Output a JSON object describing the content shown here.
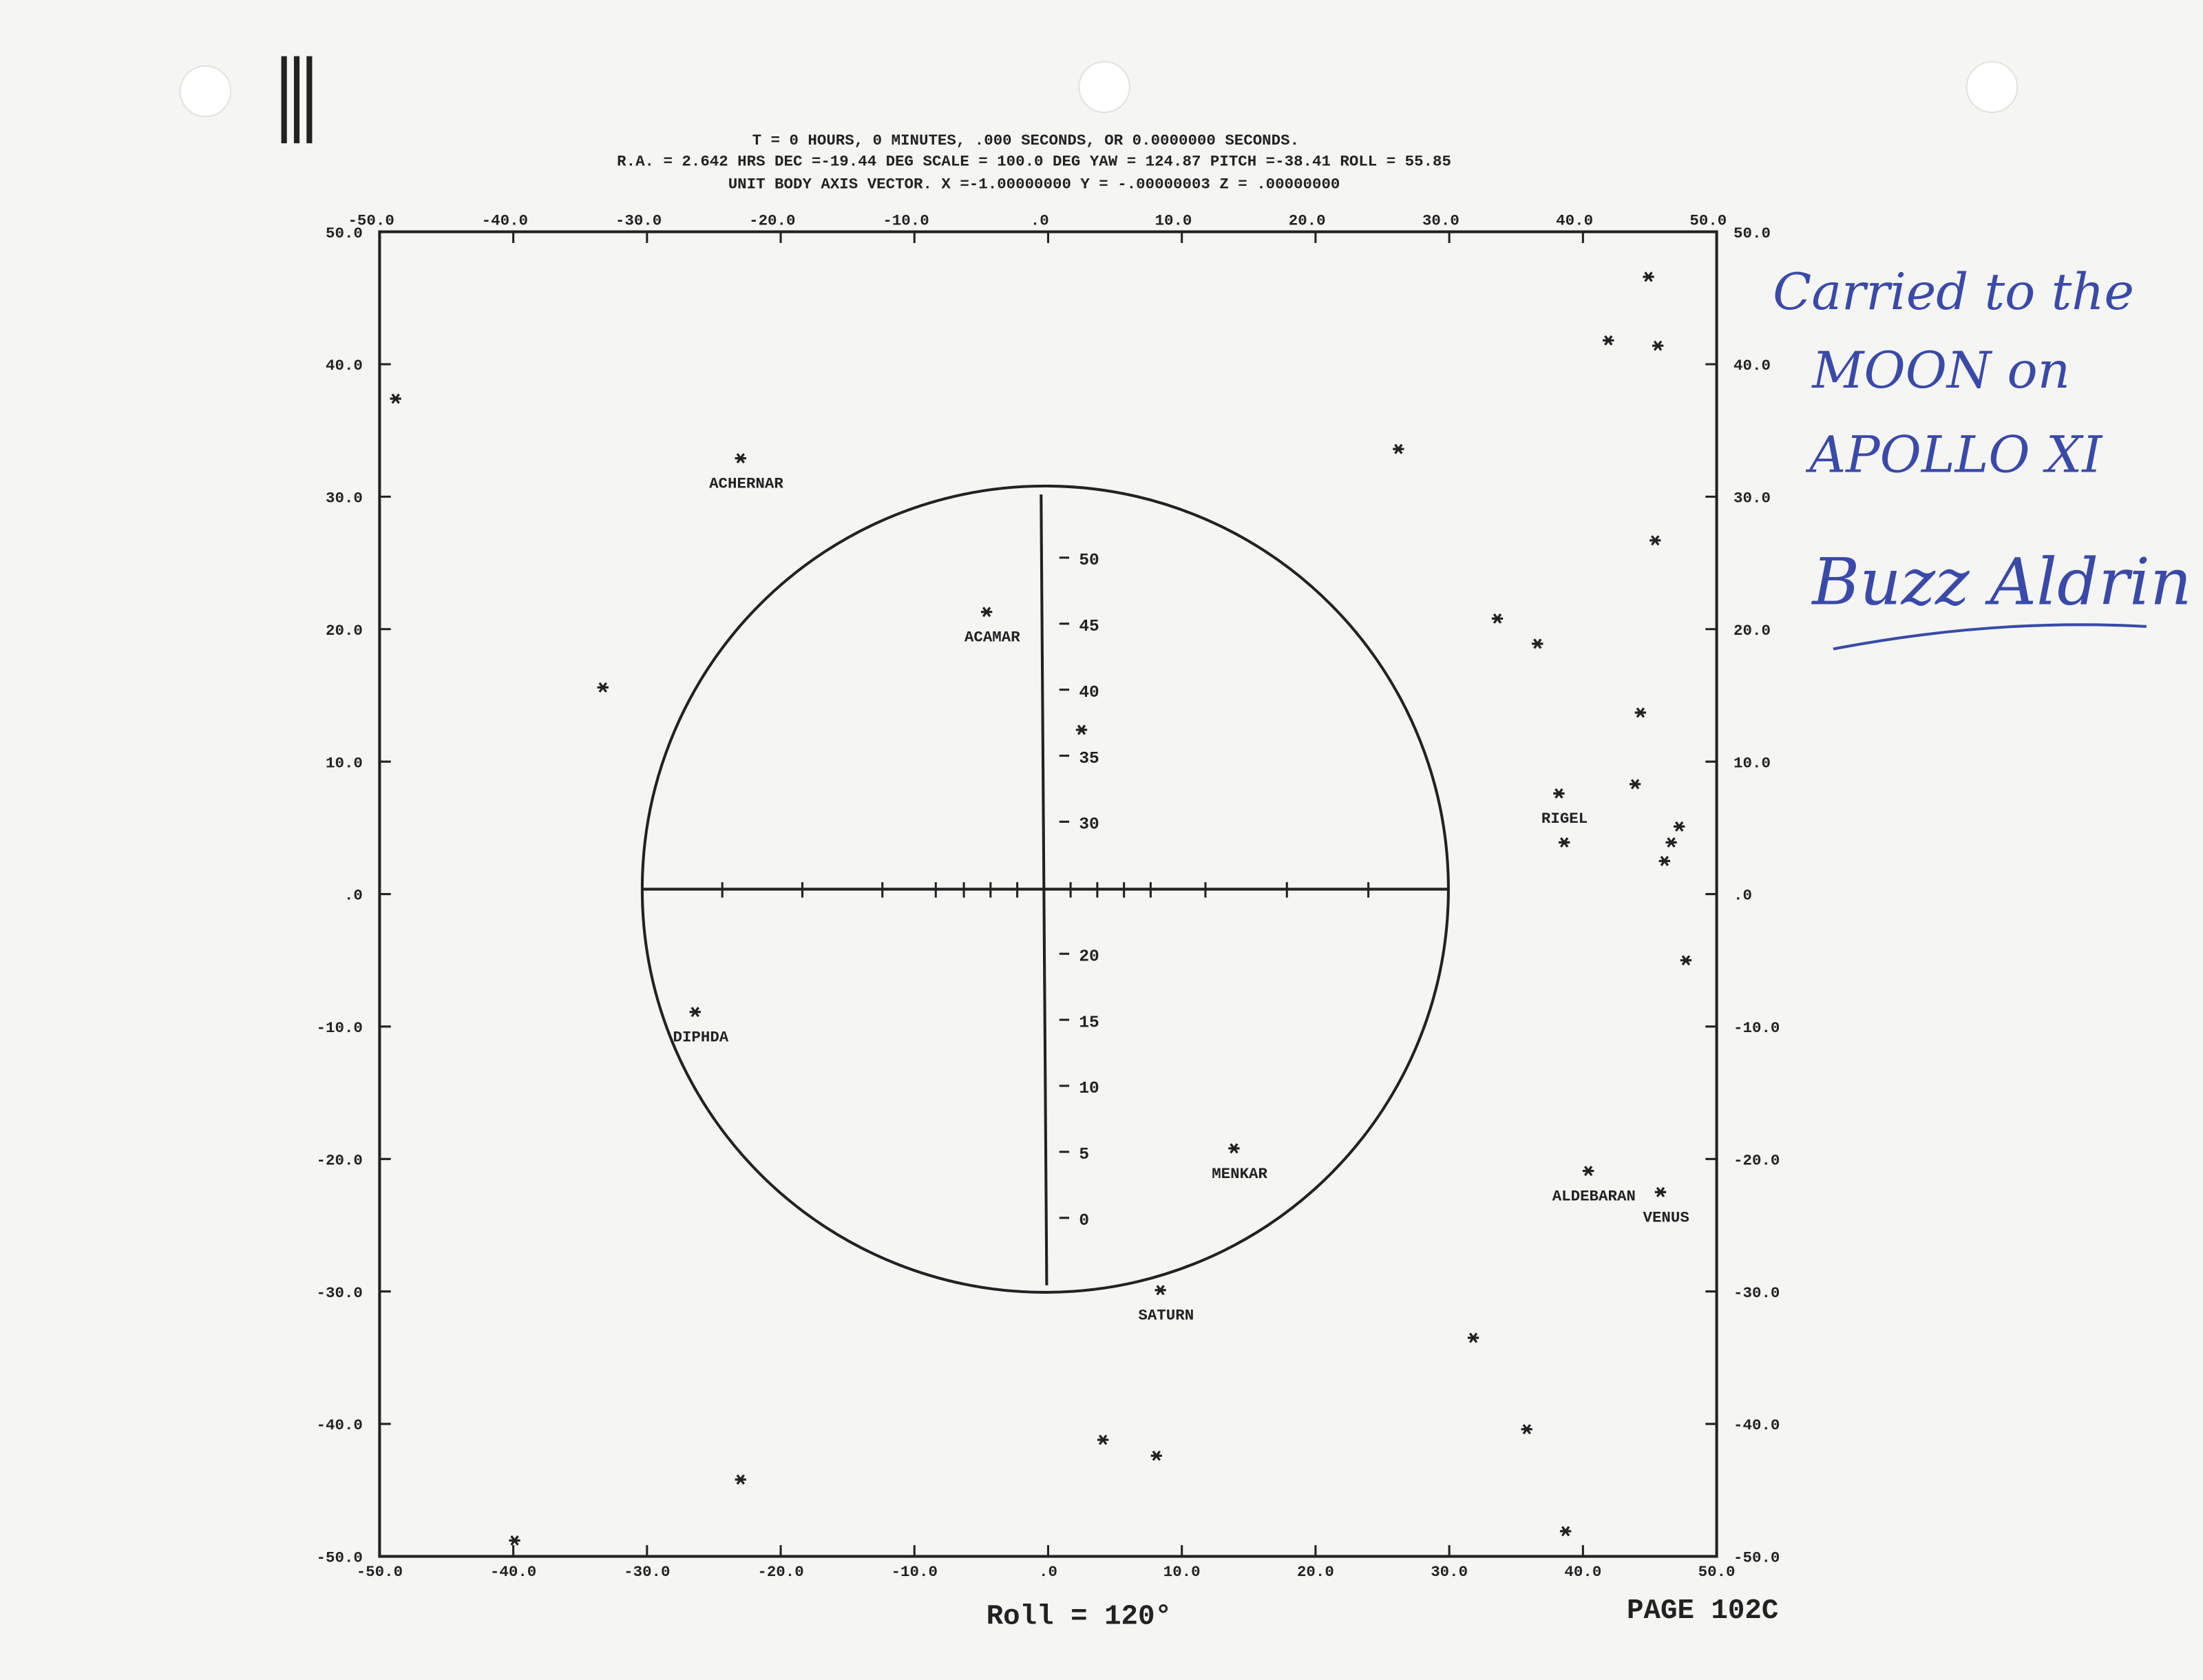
{
  "header": {
    "lines": [
      "T =    0 HOURS,  0 MINUTES,   .000 SECONDS, OR    0.0000000    SECONDS.",
      "R.A. =  2.642 HRS  DEC =-19.44 DEG  SCALE = 100.0 DEG   YAW = 124.87  PITCH =-38.41  ROLL =  55.85",
      "UNIT BODY AXIS VECTOR.    X =-1.00000000    Y = -.00000003    Z =  .00000000"
    ]
  },
  "chart_data": {
    "type": "scatter",
    "xlim": [
      -50,
      50
    ],
    "ylim": [
      -50,
      50
    ],
    "xticks": [
      {
        "value": -50,
        "label": "-50.0"
      },
      {
        "value": -40,
        "label": "-40.0"
      },
      {
        "value": -30,
        "label": "-30.0"
      },
      {
        "value": -20,
        "label": "-20.0"
      },
      {
        "value": -10,
        "label": "-10.0"
      },
      {
        "value": 0,
        "label": ".0"
      },
      {
        "value": 10,
        "label": "10.0"
      },
      {
        "value": 20,
        "label": "20.0"
      },
      {
        "value": 30,
        "label": "30.0"
      },
      {
        "value": 40,
        "label": "40.0"
      },
      {
        "value": 50,
        "label": "50.0"
      }
    ],
    "yticks": [
      {
        "value": -50,
        "label": "-50.0"
      },
      {
        "value": -40,
        "label": "-40.0"
      },
      {
        "value": -30,
        "label": "-30.0"
      },
      {
        "value": -20,
        "label": "-20.0"
      },
      {
        "value": -10,
        "label": "-10.0"
      },
      {
        "value": 0,
        "label": ".0"
      },
      {
        "value": 10,
        "label": "10.0"
      },
      {
        "value": 20,
        "label": "20.0"
      },
      {
        "value": 30,
        "label": "30.0"
      },
      {
        "value": 40,
        "label": "40.0"
      },
      {
        "value": 50,
        "label": "50.0"
      }
    ],
    "x": [
      -48.8,
      -23.0,
      -33.3,
      -4.6,
      2.5,
      -26.4,
      13.9,
      8.4,
      4.1,
      8.1,
      -23.0,
      -39.9,
      26.2,
      33.6,
      36.6,
      44.9,
      41.9,
      45.6,
      45.4,
      44.3,
      38.2,
      43.9,
      38.6,
      47.2,
      46.6,
      46.1,
      47.7,
      40.4,
      45.8,
      31.8,
      35.8,
      38.7
    ],
    "y": [
      37.4,
      32.9,
      15.6,
      21.3,
      12.4,
      -8.9,
      -19.2,
      -29.9,
      -41.2,
      -42.4,
      -44.2,
      -48.8,
      33.6,
      20.8,
      18.9,
      46.6,
      41.8,
      41.4,
      26.7,
      13.7,
      7.6,
      8.3,
      3.9,
      5.1,
      3.9,
      2.5,
      -5.0,
      -20.9,
      -22.5,
      -33.5,
      -40.4,
      -48.1
    ],
    "labels": [
      null,
      "ACHERNAR",
      null,
      "ACAMAR",
      null,
      "DIPHDA",
      "MENKAR",
      "SATURN",
      null,
      null,
      null,
      null,
      null,
      null,
      null,
      null,
      null,
      null,
      null,
      null,
      "RIGEL",
      null,
      null,
      null,
      null,
      null,
      null,
      "ALDEBARAN",
      "VENUS",
      null,
      null,
      null
    ]
  },
  "reticle": {
    "scale": [
      50,
      45,
      40,
      35,
      30,
      20,
      15,
      10,
      5,
      0
    ]
  },
  "footer": {
    "roll": "Roll = 120°",
    "page": "PAGE 102C"
  },
  "inscription": {
    "lines": [
      "Carried to the",
      "MOON on",
      "APOLLO XI"
    ],
    "signature": "Buzz Aldrin"
  }
}
